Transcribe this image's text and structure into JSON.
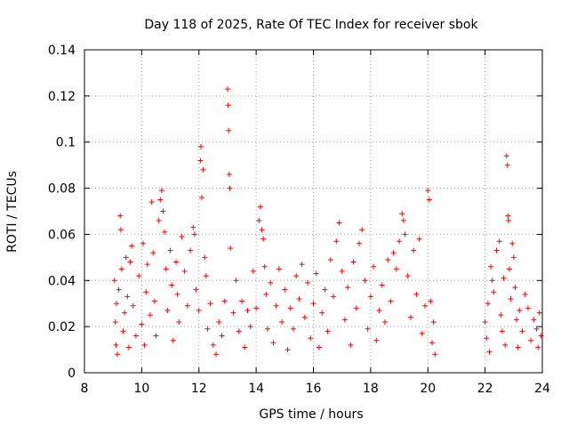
{
  "chart_data": {
    "type": "scatter",
    "title": "Day 118 of 2025, Rate Of TEC Index for receiver sbok",
    "xlabel": "GPS time / hours",
    "ylabel": "ROTI / TECUs",
    "xlim": [
      8,
      24
    ],
    "ylim": [
      0,
      0.14
    ],
    "x_ticks": [
      "8",
      "10",
      "12",
      "14",
      "16",
      "18",
      "20",
      "22",
      "24"
    ],
    "y_ticks": [
      "0",
      "0.02",
      "0.04",
      "0.06",
      "0.08",
      "0.1",
      "0.12",
      "0.14"
    ],
    "grid": true,
    "marker": "+",
    "color": "#ff0000",
    "series": [
      {
        "points": [
          [
            9.05,
            0.04
          ],
          [
            9.08,
            0.022
          ],
          [
            9.1,
            0.012
          ],
          [
            9.12,
            0.03
          ],
          [
            9.15,
            0.008
          ],
          [
            9.2,
            0.036
          ],
          [
            9.25,
            0.068
          ],
          [
            9.27,
            0.062
          ],
          [
            9.3,
            0.045
          ],
          [
            9.35,
            0.018
          ],
          [
            9.4,
            0.026
          ],
          [
            9.45,
            0.05
          ],
          [
            9.5,
            0.033
          ],
          [
            9.55,
            0.011
          ],
          [
            9.6,
            0.048
          ],
          [
            9.65,
            0.055
          ],
          [
            9.7,
            0.029
          ],
          [
            9.8,
            0.016
          ],
          [
            9.9,
            0.042
          ],
          [
            10.0,
            0.021
          ],
          [
            10.05,
            0.056
          ],
          [
            10.1,
            0.012
          ],
          [
            10.15,
            0.035
          ],
          [
            10.2,
            0.047
          ],
          [
            10.3,
            0.025
          ],
          [
            10.35,
            0.074
          ],
          [
            10.4,
            0.052
          ],
          [
            10.45,
            0.031
          ],
          [
            10.5,
            0.016
          ],
          [
            10.6,
            0.066
          ],
          [
            10.65,
            0.075
          ],
          [
            10.7,
            0.079
          ],
          [
            10.75,
            0.07
          ],
          [
            10.8,
            0.061
          ],
          [
            10.85,
            0.045
          ],
          [
            10.9,
            0.027
          ],
          [
            11.0,
            0.053
          ],
          [
            11.05,
            0.038
          ],
          [
            11.1,
            0.014
          ],
          [
            11.2,
            0.048
          ],
          [
            11.25,
            0.034
          ],
          [
            11.3,
            0.022
          ],
          [
            11.4,
            0.059
          ],
          [
            11.5,
            0.044
          ],
          [
            11.6,
            0.029
          ],
          [
            11.7,
            0.053
          ],
          [
            11.8,
            0.063
          ],
          [
            11.85,
            0.06
          ],
          [
            11.9,
            0.036
          ],
          [
            12.0,
            0.027
          ],
          [
            12.05,
            0.092
          ],
          [
            12.07,
            0.098
          ],
          [
            12.1,
            0.076
          ],
          [
            12.15,
            0.088
          ],
          [
            12.2,
            0.05
          ],
          [
            12.25,
            0.042
          ],
          [
            12.3,
            0.019
          ],
          [
            12.4,
            0.03
          ],
          [
            12.5,
            0.012
          ],
          [
            12.6,
            0.008
          ],
          [
            12.7,
            0.022
          ],
          [
            12.8,
            0.016
          ],
          [
            12.9,
            0.031
          ],
          [
            13.0,
            0.123
          ],
          [
            13.02,
            0.116
          ],
          [
            13.04,
            0.105
          ],
          [
            13.06,
            0.086
          ],
          [
            13.08,
            0.08
          ],
          [
            13.1,
            0.054
          ],
          [
            13.2,
            0.026
          ],
          [
            13.3,
            0.04
          ],
          [
            13.4,
            0.018
          ],
          [
            13.5,
            0.031
          ],
          [
            13.6,
            0.011
          ],
          [
            13.7,
            0.027
          ],
          [
            13.8,
            0.02
          ],
          [
            13.9,
            0.044
          ],
          [
            14.0,
            0.028
          ],
          [
            14.1,
            0.066
          ],
          [
            14.15,
            0.072
          ],
          [
            14.2,
            0.062
          ],
          [
            14.25,
            0.058
          ],
          [
            14.3,
            0.046
          ],
          [
            14.35,
            0.034
          ],
          [
            14.4,
            0.019
          ],
          [
            14.5,
            0.039
          ],
          [
            14.6,
            0.013
          ],
          [
            14.7,
            0.029
          ],
          [
            14.8,
            0.045
          ],
          [
            14.9,
            0.022
          ],
          [
            15.0,
            0.036
          ],
          [
            15.1,
            0.01
          ],
          [
            15.2,
            0.028
          ],
          [
            15.3,
            0.019
          ],
          [
            15.4,
            0.042
          ],
          [
            15.5,
            0.032
          ],
          [
            15.6,
            0.047
          ],
          [
            15.7,
            0.024
          ],
          [
            15.8,
            0.039
          ],
          [
            15.9,
            0.015
          ],
          [
            16.0,
            0.03
          ],
          [
            16.1,
            0.043
          ],
          [
            16.2,
            0.011
          ],
          [
            16.3,
            0.026
          ],
          [
            16.4,
            0.036
          ],
          [
            16.5,
            0.018
          ],
          [
            16.6,
            0.049
          ],
          [
            16.7,
            0.033
          ],
          [
            16.8,
            0.057
          ],
          [
            16.9,
            0.065
          ],
          [
            17.0,
            0.044
          ],
          [
            17.1,
            0.023
          ],
          [
            17.2,
            0.037
          ],
          [
            17.3,
            0.012
          ],
          [
            17.4,
            0.048
          ],
          [
            17.5,
            0.028
          ],
          [
            17.6,
            0.056
          ],
          [
            17.7,
            0.062
          ],
          [
            17.8,
            0.04
          ],
          [
            17.9,
            0.019
          ],
          [
            18.0,
            0.033
          ],
          [
            18.1,
            0.046
          ],
          [
            18.2,
            0.014
          ],
          [
            18.3,
            0.027
          ],
          [
            18.4,
            0.038
          ],
          [
            18.5,
            0.022
          ],
          [
            18.6,
            0.049
          ],
          [
            18.7,
            0.031
          ],
          [
            18.8,
            0.052
          ],
          [
            18.9,
            0.045
          ],
          [
            19.0,
            0.057
          ],
          [
            19.1,
            0.069
          ],
          [
            19.15,
            0.066
          ],
          [
            19.2,
            0.06
          ],
          [
            19.3,
            0.042
          ],
          [
            19.4,
            0.024
          ],
          [
            19.5,
            0.053
          ],
          [
            19.6,
            0.034
          ],
          [
            19.7,
            0.058
          ],
          [
            19.8,
            0.017
          ],
          [
            19.9,
            0.029
          ],
          [
            20.0,
            0.079
          ],
          [
            20.05,
            0.075
          ],
          [
            20.1,
            0.031
          ],
          [
            20.15,
            0.013
          ],
          [
            20.2,
            0.022
          ],
          [
            20.25,
            0.008
          ],
          [
            22.0,
            0.022
          ],
          [
            22.05,
            0.015
          ],
          [
            22.1,
            0.03
          ],
          [
            22.15,
            0.009
          ],
          [
            22.2,
            0.046
          ],
          [
            22.25,
            0.04
          ],
          [
            22.3,
            0.035
          ],
          [
            22.4,
            0.053
          ],
          [
            22.5,
            0.057
          ],
          [
            22.55,
            0.025
          ],
          [
            22.6,
            0.018
          ],
          [
            22.65,
            0.041
          ],
          [
            22.7,
            0.012
          ],
          [
            22.75,
            0.094
          ],
          [
            22.78,
            0.09
          ],
          [
            22.8,
            0.068
          ],
          [
            22.82,
            0.066
          ],
          [
            22.85,
            0.045
          ],
          [
            22.9,
            0.032
          ],
          [
            22.95,
            0.056
          ],
          [
            23.0,
            0.05
          ],
          [
            23.05,
            0.037
          ],
          [
            23.1,
            0.023
          ],
          [
            23.15,
            0.011
          ],
          [
            23.2,
            0.027
          ],
          [
            23.3,
            0.018
          ],
          [
            23.4,
            0.034
          ],
          [
            23.5,
            0.028
          ],
          [
            23.6,
            0.014
          ],
          [
            23.7,
            0.023
          ],
          [
            23.8,
            0.019
          ],
          [
            23.85,
            0.011
          ],
          [
            23.9,
            0.026
          ],
          [
            23.95,
            0.016
          ]
        ]
      }
    ]
  }
}
